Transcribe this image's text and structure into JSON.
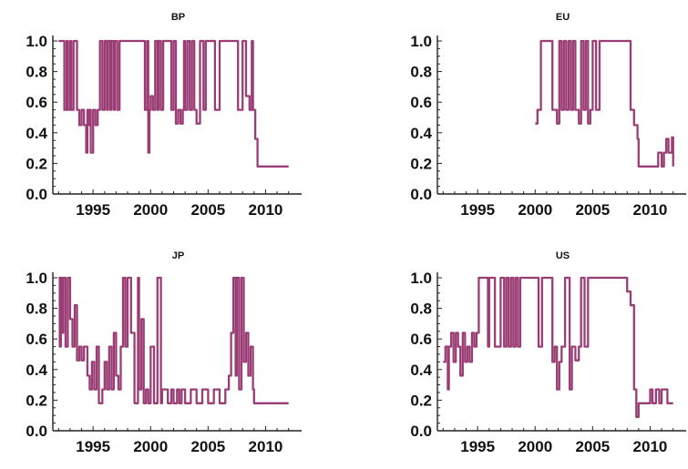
{
  "line_color": "#9b3d75",
  "chart_data": [
    {
      "type": "line",
      "title": "BP",
      "xlabel": "",
      "ylabel": "",
      "xlim": [
        1991.5,
        2012.5
      ],
      "ylim": [
        0.0,
        1.0
      ],
      "x_ticks": [
        "1995",
        "2000",
        "2005",
        "2010"
      ],
      "y_ticks": [
        "0.0",
        "0.2",
        "0.4",
        "0.6",
        "0.8",
        "1.0"
      ],
      "grid": false,
      "series": [
        {
          "x": [
            1992.0,
            1992.5,
            1992.7,
            1992.8,
            1993.0,
            1993.1,
            1993.3,
            1993.6,
            1993.8,
            1994.0,
            1994.2,
            1994.4,
            1994.5,
            1994.6,
            1994.7,
            1994.8,
            1995.0,
            1995.2,
            1995.4,
            1995.6,
            1995.8,
            1996.0,
            1996.2,
            1996.3,
            1996.5,
            1996.6,
            1996.8,
            1996.9,
            1997.1,
            1997.3,
            1997.5,
            1998.0,
            1999.0,
            1999.5,
            1999.7,
            1999.8,
            1999.9,
            2000.0,
            2000.2,
            2000.4,
            2000.6,
            2000.7,
            2000.9,
            2001.1,
            2001.3,
            2001.6,
            2001.8,
            2002.0,
            2002.2,
            2002.4,
            2002.6,
            2002.8,
            2002.9,
            2003.0,
            2003.2,
            2003.4,
            2003.6,
            2003.8,
            2004.0,
            2004.3,
            2004.6,
            2004.8,
            2005.0,
            2005.6,
            2006.0,
            2006.5,
            2007.0,
            2007.6,
            2008.0,
            2008.3,
            2008.6,
            2008.8,
            2008.9,
            2009.1,
            2009.3,
            2010.0,
            2011.0,
            2012.0
          ],
          "y": [
            1.0,
            0.55,
            1.0,
            0.55,
            1.0,
            0.55,
            1.0,
            0.55,
            0.45,
            0.55,
            0.45,
            0.27,
            0.55,
            0.45,
            0.55,
            0.27,
            0.55,
            0.45,
            0.55,
            1.0,
            0.55,
            1.0,
            0.55,
            1.0,
            0.55,
            1.0,
            0.55,
            1.0,
            0.55,
            1.0,
            1.0,
            1.0,
            1.0,
            0.55,
            1.0,
            0.27,
            0.55,
            0.64,
            0.55,
            1.0,
            0.55,
            1.0,
            0.55,
            1.0,
            1.0,
            1.0,
            0.55,
            1.0,
            0.46,
            0.55,
            0.46,
            0.55,
            1.0,
            0.55,
            1.0,
            0.55,
            1.0,
            0.55,
            0.46,
            1.0,
            0.55,
            1.0,
            1.0,
            0.55,
            1.0,
            1.0,
            1.0,
            0.55,
            1.0,
            0.64,
            0.55,
            1.0,
            0.55,
            0.36,
            0.18,
            0.18,
            0.18,
            0.18
          ]
        }
      ]
    },
    {
      "type": "line",
      "title": "EU",
      "xlabel": "",
      "ylabel": "",
      "xlim": [
        1991.5,
        2012.5
      ],
      "ylim": [
        0.0,
        1.0
      ],
      "x_ticks": [
        "1995",
        "2000",
        "2005",
        "2010"
      ],
      "y_ticks": [
        "0.0",
        "0.2",
        "0.4",
        "0.6",
        "0.8",
        "1.0"
      ],
      "grid": false,
      "series": [
        {
          "x": [
            2000.0,
            2000.2,
            2000.5,
            2001.0,
            2001.5,
            2001.9,
            2002.1,
            2002.3,
            2002.5,
            2002.7,
            2002.9,
            2003.1,
            2003.3,
            2003.5,
            2003.8,
            2004.0,
            2004.2,
            2004.4,
            2004.6,
            2004.8,
            2005.0,
            2005.3,
            2005.6,
            2006.0,
            2006.6,
            2007.0,
            2007.6,
            2008.0,
            2008.3,
            2008.6,
            2008.9,
            2009.0,
            2009.2,
            2010.0,
            2010.5,
            2010.7,
            2011.0,
            2011.2,
            2011.4,
            2011.6,
            2011.9,
            2012.0
          ],
          "y": [
            0.46,
            0.55,
            1.0,
            1.0,
            0.55,
            0.46,
            1.0,
            0.55,
            1.0,
            0.55,
            1.0,
            0.55,
            1.0,
            0.55,
            0.46,
            1.0,
            0.55,
            1.0,
            0.46,
            0.55,
            1.0,
            0.55,
            1.0,
            1.0,
            1.0,
            1.0,
            1.0,
            1.0,
            0.55,
            0.45,
            0.36,
            0.18,
            0.18,
            0.18,
            0.18,
            0.27,
            0.18,
            0.27,
            0.36,
            0.27,
            0.37,
            0.18
          ]
        }
      ]
    },
    {
      "type": "line",
      "title": "JP",
      "xlabel": "",
      "ylabel": "",
      "xlim": [
        1991.5,
        2012.5
      ],
      "ylim": [
        0.0,
        1.0
      ],
      "x_ticks": [
        "1995",
        "2000",
        "2005",
        "2010"
      ],
      "y_ticks": [
        "0.0",
        "0.2",
        "0.4",
        "0.6",
        "0.8",
        "1.0"
      ],
      "grid": false,
      "series": [
        {
          "x": [
            1992.0,
            1992.1,
            1992.2,
            1992.3,
            1992.4,
            1992.6,
            1992.8,
            1993.0,
            1993.2,
            1993.4,
            1993.6,
            1993.8,
            1994.0,
            1994.2,
            1994.5,
            1994.7,
            1994.9,
            1995.1,
            1995.3,
            1995.5,
            1995.8,
            1996.0,
            1996.2,
            1996.4,
            1996.6,
            1996.8,
            1997.0,
            1997.2,
            1997.4,
            1997.6,
            1997.8,
            1998.0,
            1998.3,
            1998.6,
            1998.9,
            1999.0,
            1999.2,
            1999.4,
            1999.6,
            1999.8,
            2000.0,
            2000.3,
            2000.6,
            2000.9,
            2001.0,
            2001.3,
            2001.5,
            2001.8,
            2002.0,
            2002.3,
            2002.5,
            2002.7,
            2003.0,
            2003.5,
            2004.0,
            2004.5,
            2005.0,
            2005.5,
            2006.0,
            2006.5,
            2006.8,
            2007.0,
            2007.2,
            2007.4,
            2007.5,
            2007.7,
            2007.9,
            2008.1,
            2008.3,
            2008.5,
            2008.7,
            2008.9,
            2009.0,
            2009.2,
            2009.5,
            2010.0,
            2011.0,
            2012.0
          ],
          "y": [
            1.0,
            0.55,
            1.0,
            0.64,
            1.0,
            0.55,
            1.0,
            0.73,
            0.55,
            0.82,
            0.46,
            0.55,
            0.46,
            0.55,
            0.36,
            0.27,
            0.45,
            0.27,
            0.55,
            0.18,
            0.27,
            0.45,
            0.27,
            0.55,
            0.27,
            0.64,
            0.36,
            0.27,
            0.55,
            1.0,
            0.55,
            1.0,
            0.64,
            0.18,
            1.0,
            0.27,
            0.73,
            0.18,
            0.27,
            0.18,
            0.55,
            0.18,
            1.0,
            0.18,
            0.27,
            0.27,
            0.18,
            0.27,
            0.18,
            0.27,
            0.18,
            0.27,
            0.18,
            0.27,
            0.18,
            0.27,
            0.18,
            0.27,
            0.18,
            0.27,
            0.36,
            0.64,
            1.0,
            0.36,
            1.0,
            0.27,
            1.0,
            0.45,
            0.64,
            0.36,
            0.55,
            0.27,
            0.18,
            0.18,
            0.18,
            0.18,
            0.18,
            0.18
          ]
        }
      ]
    },
    {
      "type": "line",
      "title": "US",
      "xlabel": "",
      "ylabel": "",
      "xlim": [
        1991.5,
        2012.5
      ],
      "ylim": [
        0.0,
        1.0
      ],
      "x_ticks": [
        "1995",
        "2000",
        "2005",
        "2010"
      ],
      "y_ticks": [
        "0.0",
        "0.2",
        "0.4",
        "0.6",
        "0.8",
        "1.0"
      ],
      "grid": false,
      "series": [
        {
          "x": [
            1992.0,
            1992.2,
            1992.4,
            1992.5,
            1992.7,
            1992.9,
            1993.1,
            1993.3,
            1993.5,
            1993.7,
            1993.9,
            1994.1,
            1994.3,
            1994.5,
            1994.7,
            1994.9,
            1995.1,
            1995.5,
            1995.9,
            1996.0,
            1996.5,
            1997.0,
            1997.3,
            1997.5,
            1997.7,
            1997.9,
            1998.1,
            1998.3,
            1998.5,
            1998.7,
            1999.0,
            1999.5,
            2000.0,
            2000.3,
            2000.6,
            2001.0,
            2001.5,
            2001.7,
            2001.9,
            2002.1,
            2002.3,
            2002.6,
            2003.0,
            2003.2,
            2003.5,
            2003.8,
            2004.0,
            2004.3,
            2004.6,
            2005.0,
            2005.5,
            2006.0,
            2006.5,
            2007.0,
            2007.5,
            2008.0,
            2008.3,
            2008.6,
            2008.8,
            2009.0,
            2009.2,
            2009.5,
            2010.0,
            2010.2,
            2010.5,
            2010.8,
            2011.0,
            2011.5,
            2012.0
          ],
          "y": [
            0.45,
            0.55,
            0.27,
            0.55,
            0.64,
            0.45,
            0.64,
            0.55,
            0.36,
            0.64,
            0.45,
            0.55,
            0.45,
            0.64,
            0.55,
            0.64,
            1.0,
            1.0,
            0.55,
            1.0,
            0.55,
            1.0,
            0.55,
            1.0,
            0.55,
            1.0,
            0.55,
            1.0,
            0.55,
            1.0,
            1.0,
            1.0,
            1.0,
            0.55,
            1.0,
            1.0,
            0.45,
            0.55,
            0.27,
            0.45,
            0.55,
            1.0,
            0.27,
            0.55,
            0.46,
            0.55,
            1.0,
            0.55,
            1.0,
            1.0,
            1.0,
            1.0,
            1.0,
            1.0,
            1.0,
            0.91,
            0.82,
            0.27,
            0.09,
            0.18,
            0.18,
            0.18,
            0.27,
            0.18,
            0.27,
            0.18,
            0.27,
            0.18,
            0.18
          ]
        }
      ]
    }
  ]
}
